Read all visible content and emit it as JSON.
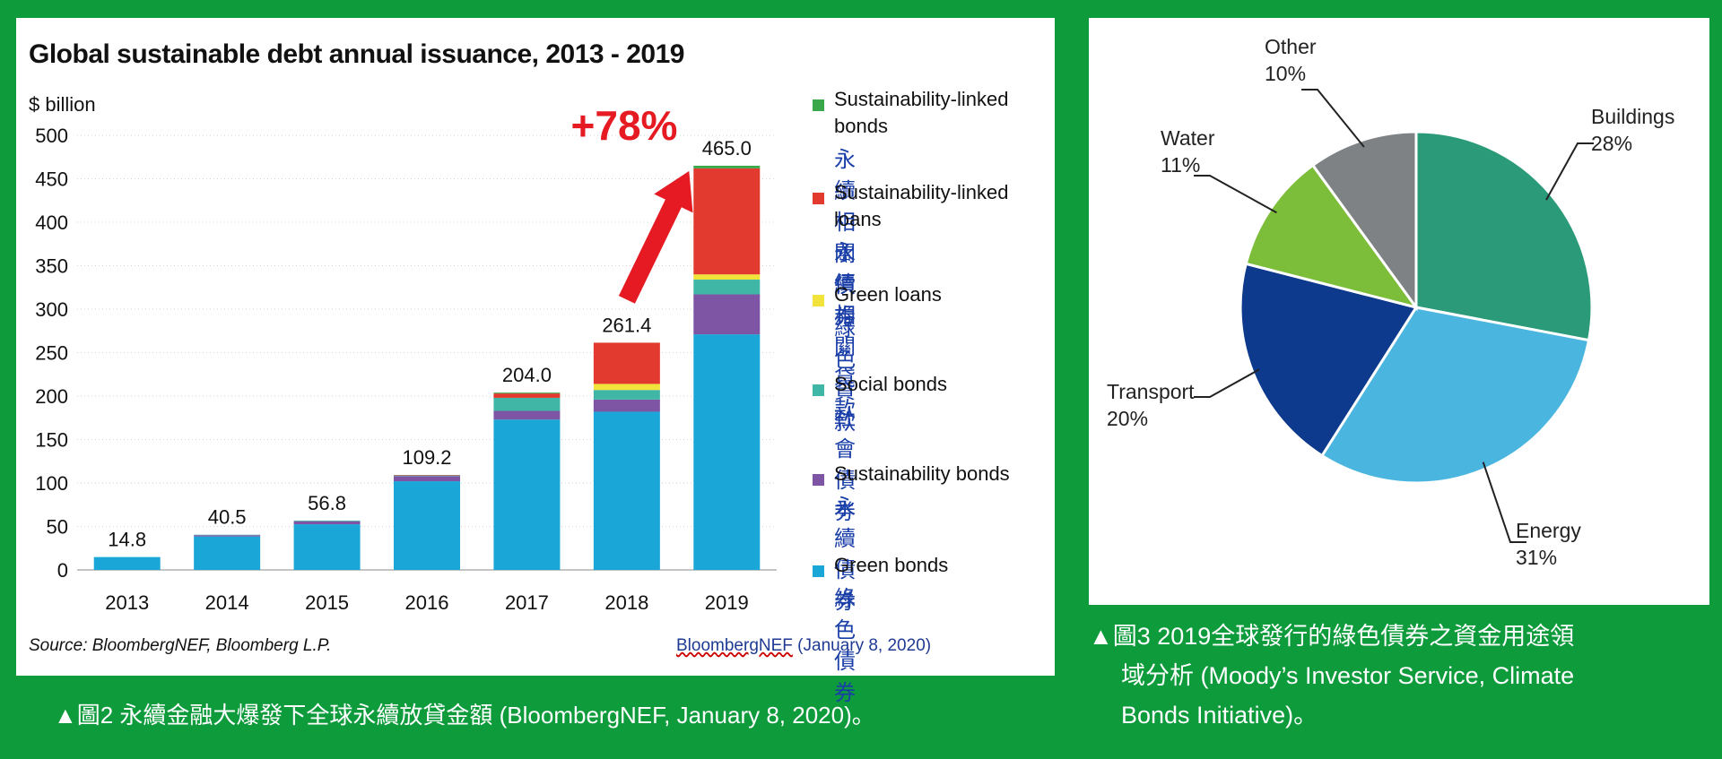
{
  "chart_data": [
    {
      "type": "bar",
      "stacked": true,
      "title": "Global sustainable debt annual issuance, 2013 - 2019",
      "ylabel": "$ billion",
      "ylim": [
        0,
        500
      ],
      "yticks": [
        0,
        50,
        100,
        150,
        200,
        250,
        300,
        350,
        400,
        450,
        500
      ],
      "categories": [
        "2013",
        "2014",
        "2015",
        "2016",
        "2017",
        "2018",
        "2019"
      ],
      "totals": [
        "14.8",
        "40.5",
        "56.8",
        "109.2",
        "204.0",
        "261.4",
        "465.0"
      ],
      "series": [
        {
          "name": "Green bonds",
          "name_zh": "綠色債券",
          "color": "#1aa7d8",
          "values": [
            14.8,
            38.5,
            52.5,
            102.0,
            173.0,
            182.0,
            271.0
          ]
        },
        {
          "name": "Sustainability bonds",
          "name_zh": "永續債券",
          "color": "#7d55a4",
          "values": [
            0,
            1.5,
            3.5,
            6.0,
            10.0,
            14.0,
            46.0
          ]
        },
        {
          "name": "Social bonds",
          "name_zh": "社會債券",
          "color": "#3fb6a6",
          "values": [
            0,
            0.5,
            0.8,
            0.8,
            15.0,
            11.0,
            17.0
          ]
        },
        {
          "name": "Green loans",
          "name_zh": "綠色貸款",
          "color": "#f2e33a",
          "values": [
            0,
            0,
            0,
            0,
            0,
            7.0,
            6.0
          ]
        },
        {
          "name": "Sustainability-linked loans",
          "name_zh": "永續相關貸款",
          "color": "#e23a2e",
          "values": [
            0,
            0,
            0,
            0.4,
            5.0,
            47.4,
            122.0
          ]
        },
        {
          "name": "Sustainability-linked bonds",
          "name_zh": "永續相關債券",
          "color": "#3aa84a",
          "values": [
            0,
            0,
            0,
            0,
            1.0,
            0,
            3.0
          ]
        }
      ],
      "legend_order": [
        5,
        4,
        3,
        2,
        1,
        0
      ],
      "annotation": "+78%",
      "annotation_color": "#e51a22",
      "source": "Source: BloombergNEF, Bloomberg L.P.",
      "credit_link": "BloombergNEF",
      "credit_date": " (January 8, 2020)"
    },
    {
      "type": "pie",
      "slices": [
        {
          "label": "Buildings",
          "value": 28,
          "pct": "28%",
          "color": "#2a9a78"
        },
        {
          "label": "Energy",
          "value": 31,
          "pct": "31%",
          "color": "#4ab6e0"
        },
        {
          "label": "Transport",
          "value": 20,
          "pct": "20%",
          "color": "#0d3a8c"
        },
        {
          "label": "Water",
          "value": 11,
          "pct": "11%",
          "color": "#7cbd3a"
        },
        {
          "label": "Other",
          "value": 10,
          "pct": "10%",
          "color": "#7e8285"
        }
      ]
    }
  ],
  "captions": {
    "left": "▲圖2 永續金融大爆發下全球永續放貸金額 (BloombergNEF, January 8, 2020)。",
    "right_line1": "▲圖3 2019全球發行的綠色債券之資金用途領",
    "right_line2": "域分析 (Moody’s Investor Service, Climate",
    "right_line3": "Bonds Initiative)。"
  }
}
